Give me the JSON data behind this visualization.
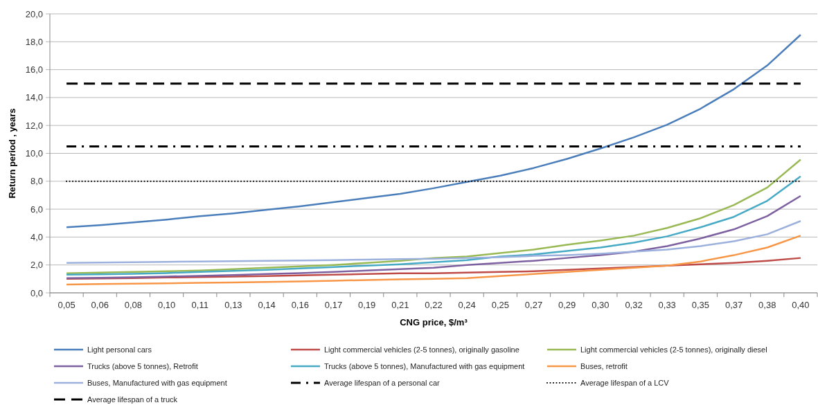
{
  "chart_data": {
    "type": "line",
    "xlabel": "CNG price, $/m³",
    "ylabel": "Return period , years",
    "categories": [
      "0,05",
      "0,06",
      "0,08",
      "0,10",
      "0,11",
      "0,13",
      "0,14",
      "0,16",
      "0,17",
      "0,19",
      "0,21",
      "0,22",
      "0,24",
      "0,25",
      "0,27",
      "0,29",
      "0,30",
      "0,32",
      "0,33",
      "0,35",
      "0,37",
      "0,38",
      "0,40"
    ],
    "ylim": [
      0,
      20
    ],
    "yticks": [
      {
        "value": 0,
        "label": "0,0"
      },
      {
        "value": 2,
        "label": "2,0"
      },
      {
        "value": 4,
        "label": "4,0"
      },
      {
        "value": 6,
        "label": "6,0"
      },
      {
        "value": 8,
        "label": "8,0"
      },
      {
        "value": 10,
        "label": "10,0"
      },
      {
        "value": 12,
        "label": "12,0"
      },
      {
        "value": 14,
        "label": "14,0"
      },
      {
        "value": 16,
        "label": "16,0"
      },
      {
        "value": 18,
        "label": "18,0"
      },
      {
        "value": 20,
        "label": "20,0"
      }
    ],
    "grid": "y",
    "legend": "bottom",
    "marker": "none",
    "series": [
      {
        "name": "Light personal cars",
        "color": "#4a7ebb",
        "values": [
          4.7,
          4.85,
          5.05,
          5.25,
          5.5,
          5.7,
          5.95,
          6.2,
          6.5,
          6.8,
          7.1,
          7.5,
          7.95,
          8.4,
          8.95,
          9.6,
          10.35,
          11.15,
          12.05,
          13.2,
          14.6,
          16.3,
          18.5
        ]
      },
      {
        "name": "Light commercial vehicles (2-5 tonnes), originally gasoline",
        "color": "#be4b48",
        "values": [
          1.0,
          1.03,
          1.06,
          1.1,
          1.13,
          1.17,
          1.2,
          1.25,
          1.3,
          1.35,
          1.4,
          1.4,
          1.45,
          1.5,
          1.55,
          1.65,
          1.75,
          1.85,
          1.95,
          2.05,
          2.15,
          2.3,
          2.5
        ]
      },
      {
        "name": "Light commercial vehicles (2-5 tonnes), originally diesel",
        "color": "#98b954",
        "values": [
          1.4,
          1.45,
          1.5,
          1.55,
          1.6,
          1.7,
          1.8,
          1.9,
          2.0,
          2.15,
          2.3,
          2.5,
          2.6,
          2.85,
          3.1,
          3.45,
          3.75,
          4.1,
          4.65,
          5.35,
          6.3,
          7.55,
          9.55
        ]
      },
      {
        "name": "Trucks (above 5 tonnes), Retrofit",
        "color": "#7d60a0",
        "values": [
          1.05,
          1.08,
          1.12,
          1.17,
          1.22,
          1.28,
          1.35,
          1.42,
          1.5,
          1.6,
          1.7,
          1.8,
          2.0,
          2.15,
          2.3,
          2.5,
          2.7,
          2.95,
          3.35,
          3.9,
          4.55,
          5.5,
          6.95
        ]
      },
      {
        "name": "Trucks (above 5 tonnes), Manufactured with gas equipment",
        "color": "#46aac5",
        "values": [
          1.3,
          1.33,
          1.37,
          1.42,
          1.5,
          1.57,
          1.65,
          1.75,
          1.85,
          1.95,
          2.05,
          2.2,
          2.35,
          2.6,
          2.75,
          3.0,
          3.25,
          3.6,
          4.05,
          4.7,
          5.45,
          6.6,
          8.35
        ]
      },
      {
        "name": "Buses, retrofit",
        "color": "#f79646",
        "values": [
          0.6,
          0.63,
          0.66,
          0.68,
          0.72,
          0.75,
          0.78,
          0.82,
          0.87,
          0.92,
          0.97,
          1.0,
          1.05,
          1.2,
          1.35,
          1.5,
          1.65,
          1.8,
          1.95,
          2.25,
          2.7,
          3.25,
          4.1
        ]
      },
      {
        "name": "Buses, Manufactured with gas equipment",
        "color": "#9bb0dc",
        "values": [
          2.15,
          2.17,
          2.2,
          2.22,
          2.25,
          2.27,
          2.3,
          2.32,
          2.35,
          2.38,
          2.42,
          2.45,
          2.5,
          2.55,
          2.65,
          2.7,
          2.8,
          2.95,
          3.1,
          3.35,
          3.7,
          4.2,
          5.15
        ]
      },
      {
        "name": "Average lifespan of a personal car",
        "color": "#000000",
        "line_style": "dashdot",
        "values": [
          10.5,
          10.5,
          10.5,
          10.5,
          10.5,
          10.5,
          10.5,
          10.5,
          10.5,
          10.5,
          10.5,
          10.5,
          10.5,
          10.5,
          10.5,
          10.5,
          10.5,
          10.5,
          10.5,
          10.5,
          10.5,
          10.5,
          10.5
        ]
      },
      {
        "name": "Average lifespan of a LCV",
        "color": "#000000",
        "line_style": "dotted",
        "values": [
          8,
          8,
          8,
          8,
          8,
          8,
          8,
          8,
          8,
          8,
          8,
          8,
          8,
          8,
          8,
          8,
          8,
          8,
          8,
          8,
          8,
          8,
          8
        ]
      },
      {
        "name": "Average lifespan of a truck",
        "color": "#000000",
        "line_style": "dashed",
        "values": [
          15,
          15,
          15,
          15,
          15,
          15,
          15,
          15,
          15,
          15,
          15,
          15,
          15,
          15,
          15,
          15,
          15,
          15,
          15,
          15,
          15,
          15,
          15
        ]
      }
    ]
  }
}
